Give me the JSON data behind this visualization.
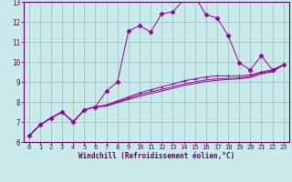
{
  "background_color": "#c8eaea",
  "line_color": "#990099",
  "grid_color": "#99bbbb",
  "axis_color": "#660066",
  "spine_color": "#660066",
  "xlim": [
    -0.5,
    23.5
  ],
  "ylim": [
    6,
    13
  ],
  "yticks": [
    6,
    7,
    8,
    9,
    10,
    11,
    12,
    13
  ],
  "xticks": [
    0,
    1,
    2,
    3,
    4,
    5,
    6,
    7,
    8,
    9,
    10,
    11,
    12,
    13,
    14,
    15,
    16,
    17,
    18,
    19,
    20,
    21,
    22,
    23
  ],
  "xlabel": "Windchill (Refroidissement éolien,°C)",
  "curves": [
    {
      "x": [
        0,
        1,
        2,
        3,
        4,
        5,
        6,
        7,
        8,
        9,
        10,
        11,
        12,
        13,
        14,
        15,
        16,
        17,
        18,
        19,
        20,
        21,
        22,
        23
      ],
      "y": [
        6.3,
        6.85,
        7.2,
        7.5,
        7.0,
        7.6,
        7.75,
        8.55,
        9.0,
        11.55,
        11.8,
        11.5,
        12.4,
        12.5,
        13.1,
        13.25,
        12.35,
        12.2,
        11.3,
        9.95,
        9.6,
        10.3,
        9.6,
        9.85
      ],
      "marker": "D",
      "markersize": 2.5
    },
    {
      "x": [
        0,
        1,
        2,
        3,
        4,
        5,
        6,
        7,
        8,
        9,
        10,
        11,
        12,
        13,
        14,
        15,
        16,
        17,
        18,
        19,
        20,
        21,
        22,
        23
      ],
      "y": [
        6.3,
        6.85,
        7.2,
        7.5,
        7.0,
        7.6,
        7.75,
        7.85,
        8.05,
        8.25,
        8.45,
        8.6,
        8.75,
        8.9,
        9.05,
        9.15,
        9.25,
        9.3,
        9.3,
        9.3,
        9.35,
        9.5,
        9.6,
        9.85
      ],
      "marker": "+",
      "markersize": 3.0
    },
    {
      "x": [
        0,
        1,
        2,
        3,
        4,
        5,
        6,
        7,
        8,
        9,
        10,
        11,
        12,
        13,
        14,
        15,
        16,
        17,
        18,
        19,
        20,
        21,
        22,
        23
      ],
      "y": [
        6.3,
        6.85,
        7.2,
        7.5,
        7.0,
        7.6,
        7.75,
        7.82,
        8.0,
        8.18,
        8.36,
        8.5,
        8.62,
        8.76,
        8.9,
        9.0,
        9.1,
        9.15,
        9.18,
        9.2,
        9.28,
        9.45,
        9.55,
        9.85
      ],
      "marker": null,
      "markersize": 0
    },
    {
      "x": [
        0,
        1,
        2,
        3,
        4,
        5,
        6,
        7,
        8,
        9,
        10,
        11,
        12,
        13,
        14,
        15,
        16,
        17,
        18,
        19,
        20,
        21,
        22,
        23
      ],
      "y": [
        6.3,
        6.85,
        7.2,
        7.5,
        7.0,
        7.6,
        7.75,
        7.79,
        7.96,
        8.12,
        8.28,
        8.42,
        8.54,
        8.68,
        8.82,
        8.92,
        9.02,
        9.08,
        9.12,
        9.15,
        9.22,
        9.4,
        9.5,
        9.85
      ],
      "marker": null,
      "markersize": 0
    }
  ]
}
